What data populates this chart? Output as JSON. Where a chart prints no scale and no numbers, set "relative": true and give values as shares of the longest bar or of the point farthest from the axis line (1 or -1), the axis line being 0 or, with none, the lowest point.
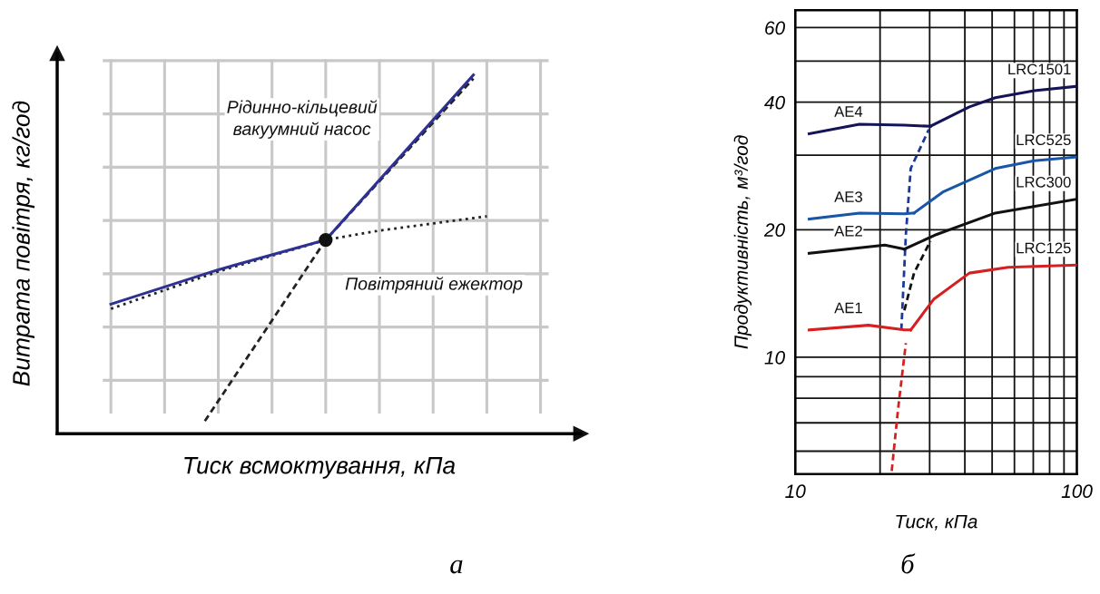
{
  "chart_data": [
    {
      "type": "line",
      "xlabel": "Тиск всмоктування, кПа",
      "ylabel": "Витрата повітря, кг/год",
      "relative": true,
      "grid": true,
      "tick_labels": false,
      "annotations": [
        "а"
      ],
      "categories": [
        null,
        null,
        null,
        null,
        null,
        null,
        null,
        null,
        null,
        null,
        null,
        null,
        null,
        null,
        null,
        null,
        null,
        null,
        null,
        null,
        null,
        null,
        null,
        null,
        null,
        null,
        null,
        null,
        null,
        null,
        null,
        null,
        null
      ],
      "series": [
        {
          "type": "line",
          "line_style": "dotted",
          "name": "Повітряний ежектор",
          "color": "#222222",
          "values": [
            0.348,
            null,
            null,
            null,
            null,
            null,
            null,
            null,
            0.452,
            null,
            null,
            null,
            null,
            null,
            null,
            null,
            0.54,
            null,
            null,
            null,
            0.566,
            null,
            null,
            null,
            0.586,
            null,
            null,
            null,
            0.606,
            null,
            null,
            null,
            null
          ]
        },
        {
          "type": "line",
          "line_style": "solid",
          "name": "Рідинно-кільцевий\nвакуумний насос",
          "color": "#2e3192",
          "values": [
            0.361,
            null,
            null,
            null,
            null,
            null,
            null,
            null,
            0.457,
            null,
            null,
            null,
            null,
            null,
            null,
            null,
            0.54,
            null,
            null,
            null,
            null,
            null,
            null,
            null,
            null,
            null,
            null,
            1.0,
            null,
            null,
            null,
            null,
            null
          ]
        },
        {
          "type": "line",
          "line_style": "dashed",
          "color": "#222222",
          "values": [
            null,
            null,
            null,
            null,
            null,
            null,
            null,
            0.035,
            null,
            null,
            null,
            null,
            null,
            null,
            null,
            null,
            0.54,
            null,
            null,
            null,
            null,
            null,
            null,
            null,
            null,
            null,
            null,
            0.99,
            null,
            null,
            null,
            null,
            null
          ]
        },
        {
          "type": "line",
          "line_style": "solid",
          "marker": "circle",
          "color": "#111111",
          "values": [
            null,
            null,
            null,
            null,
            null,
            null,
            null,
            null,
            null,
            null,
            null,
            null,
            null,
            null,
            null,
            null,
            0.54,
            null,
            null,
            null,
            null,
            null,
            null,
            null,
            null,
            null,
            null,
            null,
            null,
            null,
            null,
            null,
            null
          ]
        }
      ]
    },
    {
      "type": "line",
      "xlabel": "Тиск, кПа",
      "ylabel": "Продуктивність, м³/год",
      "log": "xy",
      "grid": true,
      "annotations": [
        "б"
      ],
      "xlim": [
        10,
        100
      ],
      "xticks": [
        10,
        100
      ],
      "ylim": [
        5.3,
        66
      ],
      "yticks": [
        10,
        20,
        40,
        60
      ],
      "series": [
        {
          "name": "AE4",
          "color": "#141457",
          "line_style": "solid",
          "x": [
            11.2,
            16.9,
            24.4,
            30.2
          ],
          "values": [
            33.7,
            35.5,
            35.3,
            35.1
          ]
        },
        {
          "name": "LRC1501",
          "color": "#141457",
          "line_style": "solid",
          "x": [
            30.2,
            41.5,
            51.3,
            70.5,
            99.5
          ],
          "values": [
            35.1,
            39.0,
            41.0,
            42.6,
            43.6
          ]
        },
        {
          "name": "AE3",
          "color": "#1a56a8",
          "line_style": "solid",
          "x": [
            11.2,
            16.9,
            24.4,
            26.4
          ],
          "values": [
            21.2,
            21.9,
            21.8,
            21.9
          ]
        },
        {
          "name": "LRC525",
          "color": "#1a56a8",
          "line_style": "solid",
          "x": [
            26.4,
            33.6,
            51.3,
            70.5,
            99.5
          ],
          "values": [
            21.9,
            24.6,
            27.9,
            29.1,
            29.7
          ]
        },
        {
          "name": "AE2",
          "color": "#111111",
          "line_style": "solid",
          "x": [
            11.2,
            20.8,
            24.4
          ],
          "values": [
            17.6,
            18.4,
            18.0
          ]
        },
        {
          "name": "LRC300",
          "color": "#111111",
          "line_style": "solid",
          "x": [
            24.4,
            31.8,
            51.3,
            99.5
          ],
          "values": [
            18.0,
            19.5,
            21.9,
            23.6
          ]
        },
        {
          "name": "AE1",
          "color": "#d42020",
          "line_style": "solid",
          "x": [
            11.2,
            18.2,
            24.4,
            25.7
          ],
          "values": [
            11.6,
            11.9,
            11.6,
            11.6
          ]
        },
        {
          "name": "LRC125",
          "color": "#d42020",
          "line_style": "solid",
          "x": [
            25.7,
            31.0,
            41.5,
            57.0,
            99.5
          ],
          "values": [
            11.6,
            13.7,
            15.8,
            16.3,
            16.5
          ]
        },
        {
          "color": "#1a3a9a",
          "line_style": "dashed",
          "x": [
            23.8,
            24.7,
            25.7,
            29.8
          ],
          "values": [
            11.6,
            19.5,
            27.9,
            34.5
          ]
        },
        {
          "color": "#111111",
          "line_style": "dashed",
          "x": [
            24.4,
            26.4,
            30.2
          ],
          "values": [
            12.9,
            15.8,
            18.8
          ]
        },
        {
          "color": "#d42020",
          "line_style": "dashed",
          "x": [
            22.0,
            23.2,
            24.7
          ],
          "values": [
            5.39,
            7.6,
            10.8
          ]
        }
      ]
    }
  ]
}
